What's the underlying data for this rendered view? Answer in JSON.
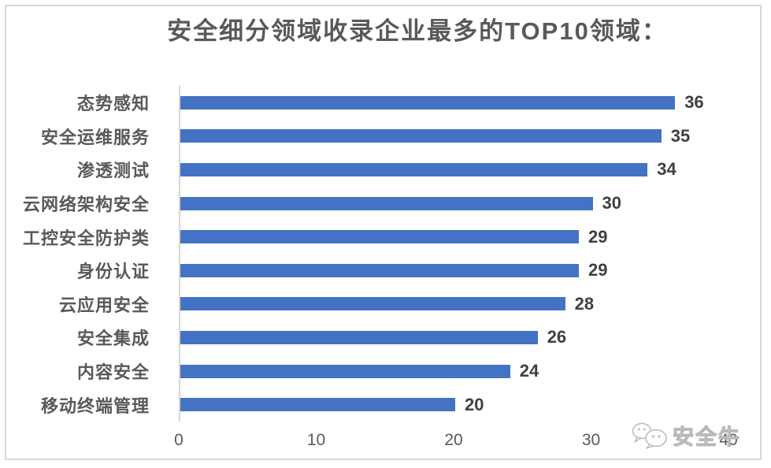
{
  "title": "安全细分领域收录企业最多的TOP10领域：",
  "watermark": {
    "label": "安全牛"
  },
  "chart_data": {
    "type": "bar",
    "orientation": "horizontal",
    "title": "安全细分领域收录企业最多的TOP10领域：",
    "categories": [
      "态势感知",
      "安全运维服务",
      "渗透测试",
      "云网络架构安全",
      "工控安全防护类",
      "身份认证",
      "云应用安全",
      "安全集成",
      "内容安全",
      "移动终端管理"
    ],
    "values": [
      36,
      35,
      34,
      30,
      29,
      29,
      28,
      26,
      24,
      20
    ],
    "data_labels": [
      36,
      35,
      34,
      30,
      29,
      29,
      28,
      26,
      24,
      20
    ],
    "x_ticks": [
      0,
      10,
      20,
      30,
      40
    ],
    "xlim": [
      0,
      40
    ],
    "grid": false,
    "legend": null,
    "bar_color": "#4472C4",
    "category_label_color": "#595959",
    "value_label_color": "#404040",
    "tick_label_color": "#595959",
    "axis_line_color": "#d6d6d6",
    "frame_border_color": "#d9d9d9"
  }
}
